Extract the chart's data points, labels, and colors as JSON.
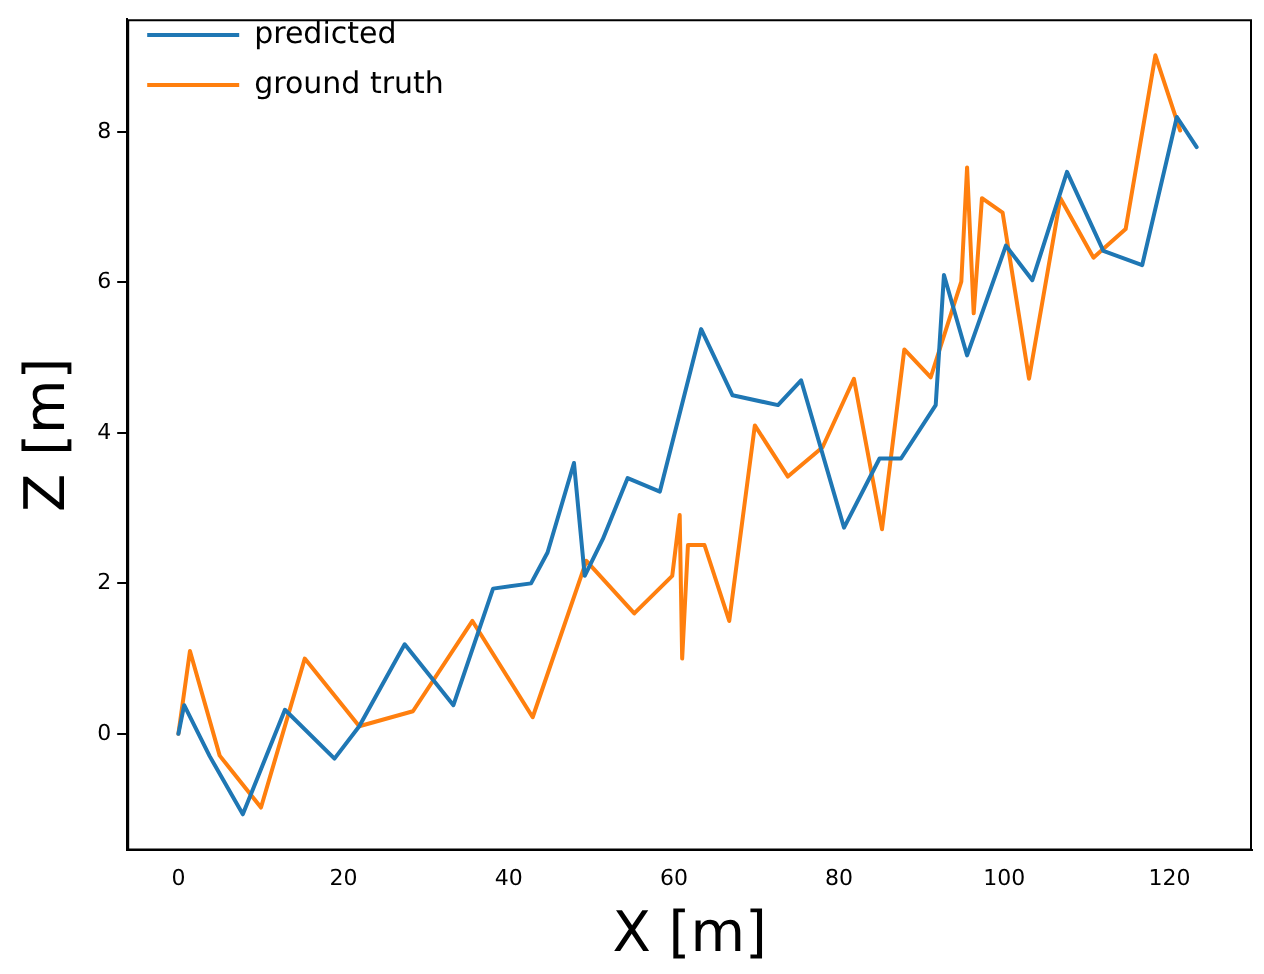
{
  "chart_data": {
    "type": "line",
    "xlabel": "X [m]",
    "ylabel": "Z [m]",
    "xlim": [
      -6.2,
      130
    ],
    "ylim": [
      -1.55,
      9.5
    ],
    "xticks": [
      0,
      20,
      40,
      60,
      80,
      100,
      120
    ],
    "yticks": [
      0,
      2,
      4,
      6,
      8
    ],
    "grid": false,
    "legend": "top left",
    "marker": "none",
    "line_style": "solid",
    "series": [
      {
        "name": "predicted",
        "color": "#1f77b4",
        "x": [
          0,
          0.7,
          3.8,
          7.8,
          12.9,
          18.9,
          21.9,
          27.4,
          33.3,
          38.1,
          42.7,
          44.7,
          47.9,
          49.2,
          51.4,
          54.4,
          58.3,
          63.3,
          67.1,
          72.6,
          75.4,
          80.6,
          84.9,
          87.5,
          91.7,
          92.7,
          95.5,
          100.2,
          103.4,
          107.6,
          112,
          116.7,
          120.9,
          123.3
        ],
        "values": [
          0,
          0.38,
          -0.3,
          -1.07,
          0.32,
          -0.33,
          0.1,
          1.19,
          0.38,
          1.93,
          2.0,
          2.41,
          3.6,
          2.1,
          2.59,
          3.4,
          3.22,
          5.38,
          4.5,
          4.37,
          4.7,
          2.74,
          3.66,
          3.66,
          4.37,
          6.1,
          5.03,
          6.49,
          6.03,
          7.47,
          6.42,
          6.23,
          8.2,
          7.8
        ]
      },
      {
        "name": "ground truth",
        "color": "#ff7f0e",
        "x": [
          0,
          1.4,
          5,
          10,
          15.3,
          21.9,
          28.4,
          35.6,
          42.9,
          49.4,
          55.2,
          59.8,
          60.7,
          61,
          61.7,
          63.7,
          66.7,
          69.8,
          73.8,
          78,
          81.8,
          85.2,
          87.9,
          91.1,
          94.8,
          95.5,
          96.3,
          97.3,
          99.8,
          103,
          106.8,
          110.8,
          114.7,
          118.3,
          121.3
        ],
        "values": [
          0,
          1.1,
          -0.29,
          -0.98,
          1.0,
          0.1,
          0.3,
          1.5,
          0.22,
          2.3,
          1.6,
          2.1,
          2.91,
          1.0,
          2.51,
          2.51,
          1.5,
          4.1,
          3.42,
          3.81,
          4.72,
          2.72,
          5.11,
          4.74,
          6.01,
          7.53,
          5.59,
          7.12,
          6.93,
          4.72,
          7.12,
          6.33,
          6.71,
          9.02,
          8.02
        ]
      }
    ]
  }
}
